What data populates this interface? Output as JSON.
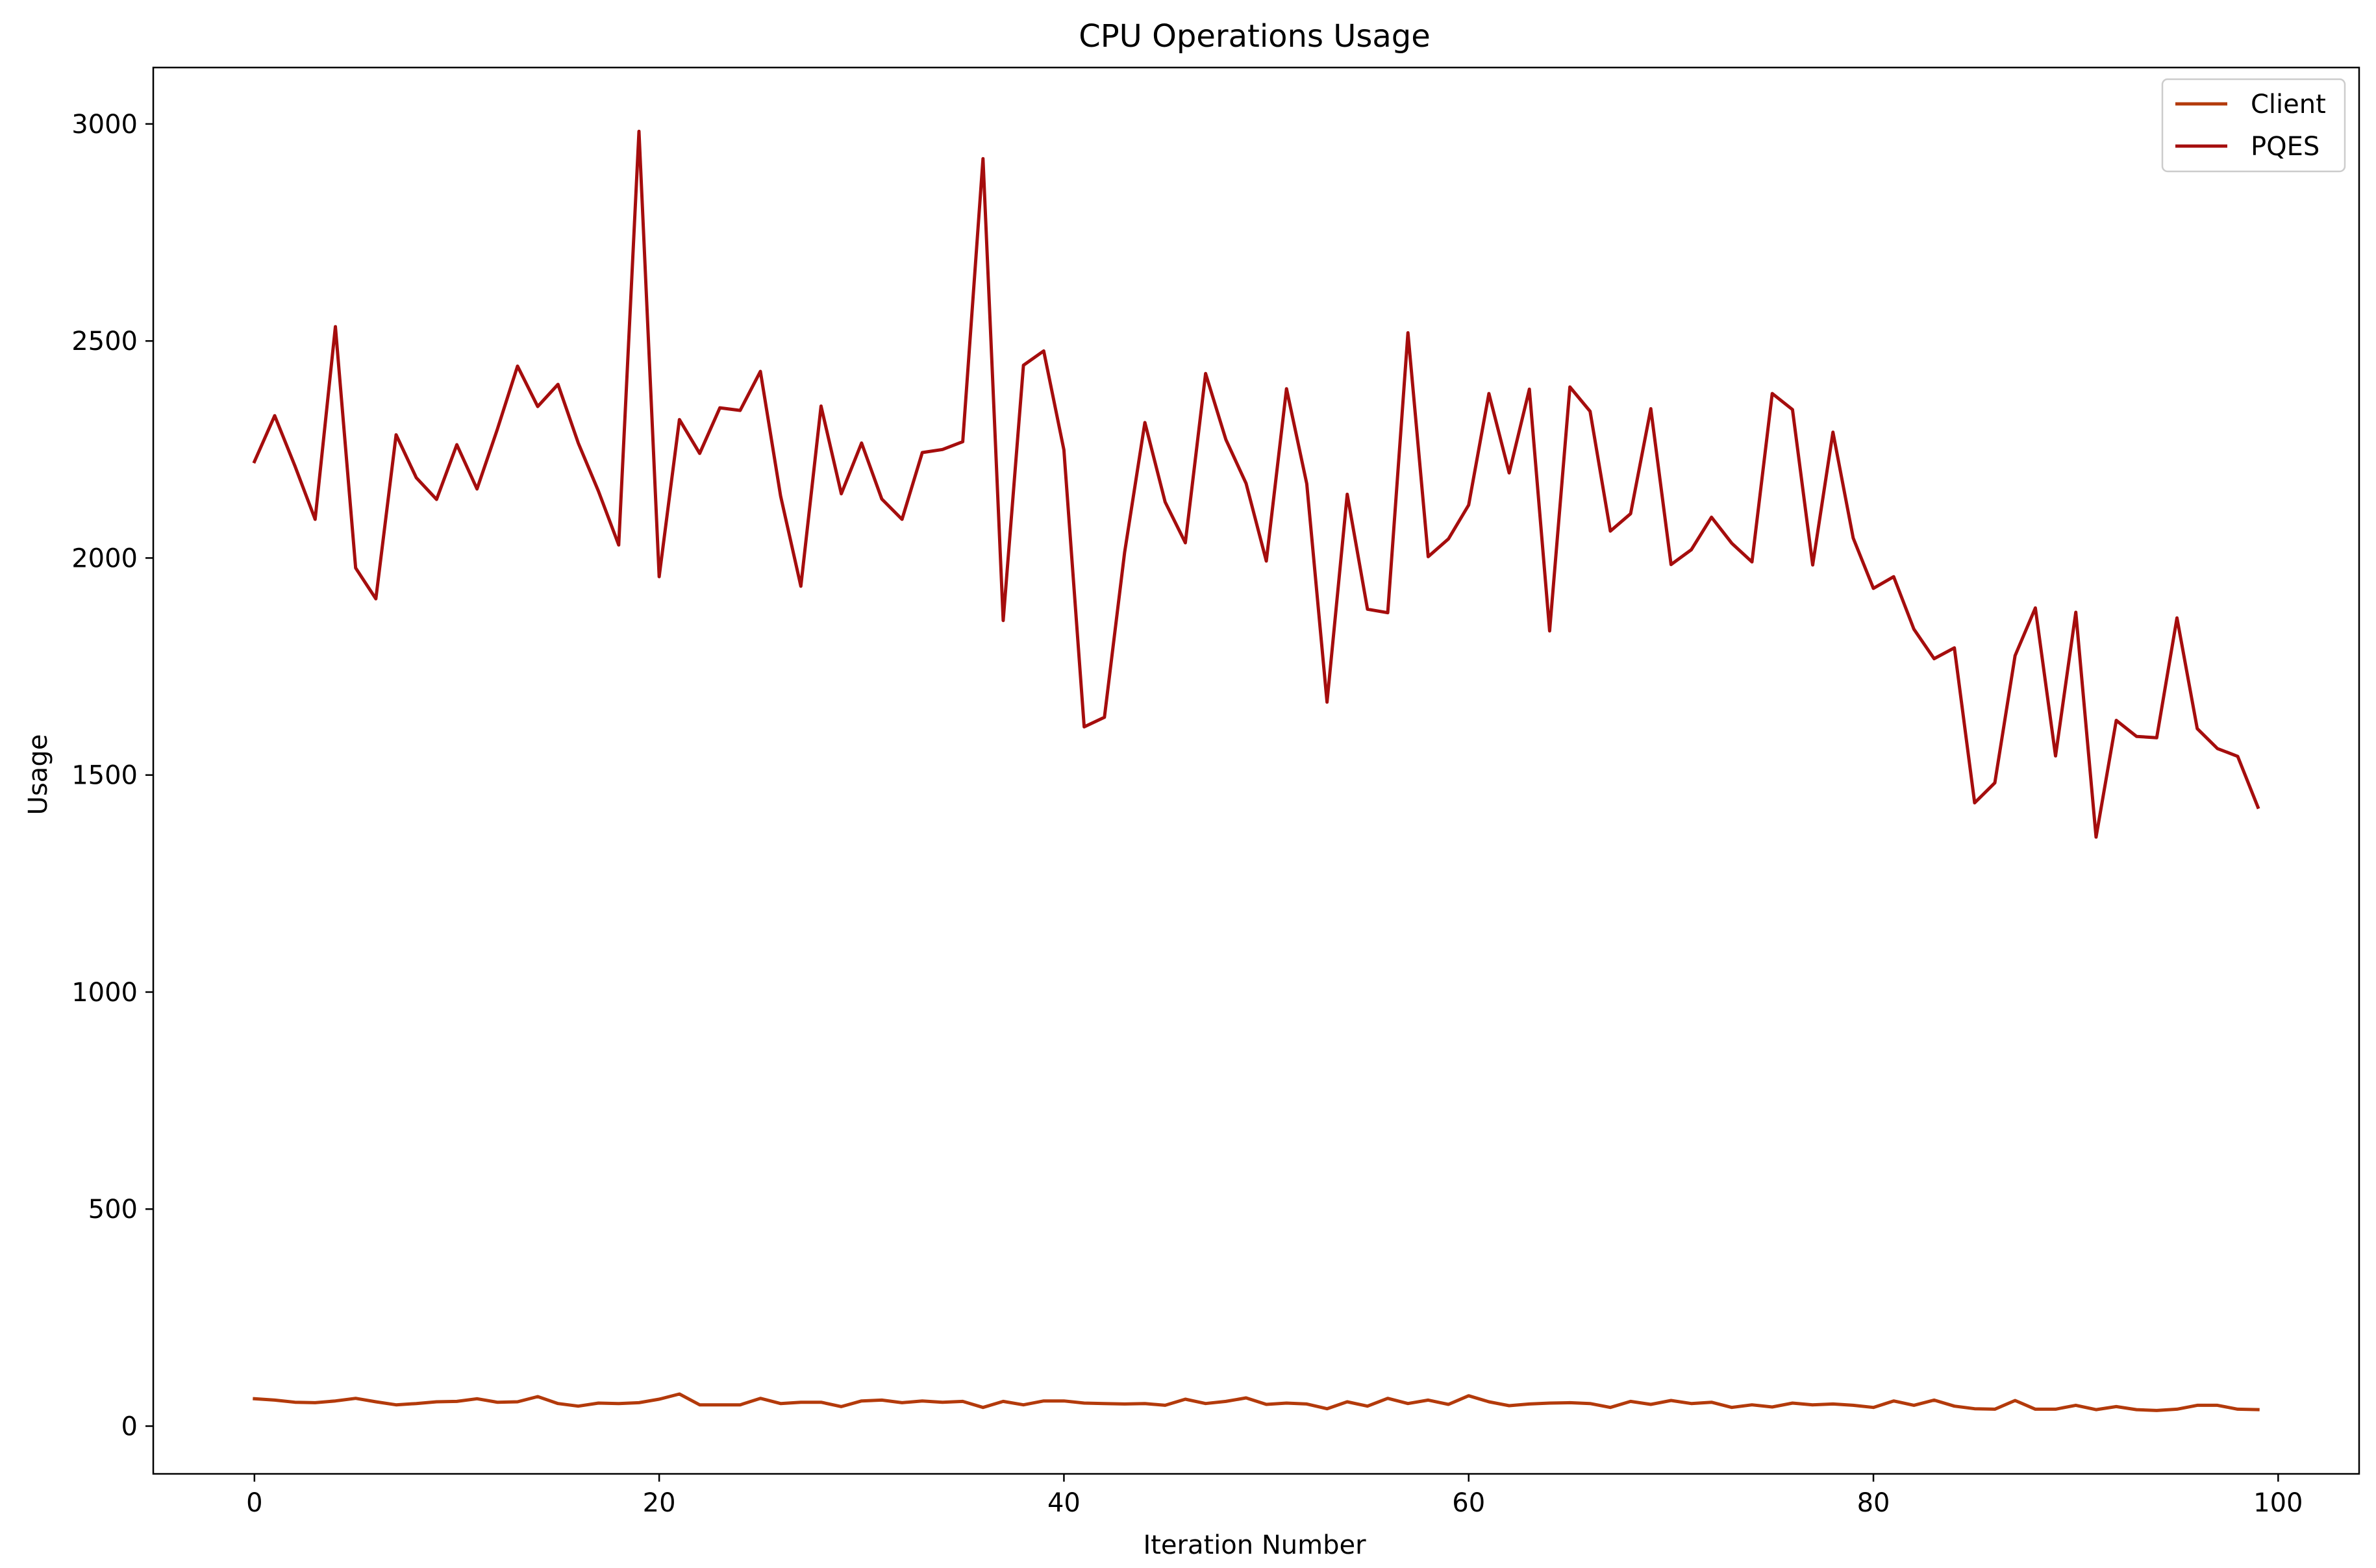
{
  "chart_data": {
    "type": "line",
    "title": "CPU Operations Usage",
    "xlabel": "Iteration Number",
    "ylabel": "Usage",
    "xlim": [
      -5,
      104
    ],
    "ylim": [
      -110,
      3130
    ],
    "xticks": [
      0,
      20,
      40,
      60,
      80,
      100
    ],
    "yticks": [
      0,
      500,
      1000,
      1500,
      2000,
      2500,
      3000
    ],
    "grid": false,
    "legend_position": "top-right",
    "x": [
      0,
      1,
      2,
      3,
      4,
      5,
      6,
      7,
      8,
      9,
      10,
      11,
      12,
      13,
      14,
      15,
      16,
      17,
      18,
      19,
      20,
      21,
      22,
      23,
      24,
      25,
      26,
      27,
      28,
      29,
      30,
      31,
      32,
      33,
      34,
      35,
      36,
      37,
      38,
      39,
      40,
      41,
      42,
      43,
      44,
      45,
      46,
      47,
      48,
      49,
      50,
      51,
      52,
      53,
      54,
      55,
      56,
      57,
      58,
      59,
      60,
      61,
      62,
      63,
      64,
      65,
      66,
      67,
      68,
      69,
      70,
      71,
      72,
      73,
      74,
      75,
      76,
      77,
      78,
      79,
      80,
      81,
      82,
      83,
      84,
      85,
      86,
      87,
      88,
      89,
      90,
      91,
      92,
      93,
      94,
      95,
      96,
      97,
      98,
      99
    ],
    "series": [
      {
        "name": "Client",
        "color": "#b33a0b",
        "values": [
          63,
          60,
          55,
          54,
          58,
          64,
          56,
          49,
          52,
          56,
          57,
          63,
          55,
          56,
          68,
          52,
          46,
          53,
          52,
          54,
          62,
          74,
          49,
          49,
          49,
          64,
          52,
          55,
          55,
          45,
          58,
          60,
          54,
          58,
          55,
          57,
          43,
          57,
          49,
          58,
          58,
          53,
          52,
          51,
          52,
          48,
          62,
          52,
          57,
          65,
          50,
          53,
          51,
          40,
          56,
          46,
          64,
          52,
          60,
          50,
          70,
          56,
          47,
          51,
          53,
          54,
          52,
          43,
          57,
          50,
          59,
          52,
          55,
          43,
          49,
          44,
          53,
          49,
          51,
          48,
          43,
          58,
          48,
          60,
          46,
          40,
          39,
          59,
          39,
          39,
          48,
          38,
          45,
          38,
          36,
          39,
          48,
          48,
          39,
          38
        ]
      },
      {
        "name": "PQES",
        "color": "#a50d0d",
        "values": [
          2222,
          2328,
          2212,
          2089,
          2533,
          1977,
          1906,
          2284,
          2185,
          2135,
          2261,
          2159,
          2296,
          2442,
          2349,
          2400,
          2265,
          2154,
          2030,
          2983,
          1957,
          2319,
          2241,
          2346,
          2340,
          2430,
          2143,
          1935,
          2350,
          2148,
          2265,
          2136,
          2089,
          2243,
          2250,
          2268,
          2920,
          1856,
          2444,
          2477,
          2249,
          1611,
          1633,
          2013,
          2312,
          2129,
          2035,
          2425,
          2273,
          2172,
          1993,
          2390,
          2171,
          1668,
          2147,
          1882,
          1874,
          2519,
          2003,
          2044,
          2122,
          2379,
          2196,
          2389,
          1832,
          2394,
          2338,
          2062,
          2102,
          2344,
          1985,
          2019,
          2094,
          2034,
          1991,
          2379,
          2342,
          1984,
          2290,
          2046,
          1930,
          1957,
          1836,
          1768,
          1793,
          1436,
          1482,
          1775,
          1885,
          1544,
          1875,
          1357,
          1626,
          1589,
          1586,
          1862,
          1607,
          1561,
          1543,
          1426
        ]
      }
    ]
  }
}
